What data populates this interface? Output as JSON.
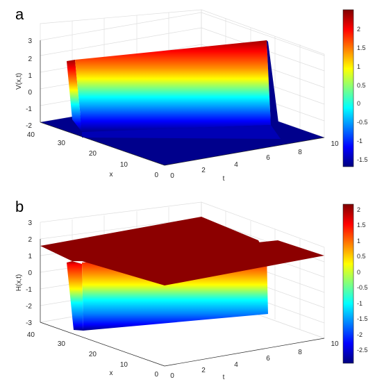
{
  "chart_data": [
    {
      "type": "surface",
      "panel_label": "a",
      "xlabel": "t",
      "ylabel": "x",
      "zlabel": "V(x,t)",
      "t_range": [
        0,
        10
      ],
      "x_range": [
        0,
        40
      ],
      "zlim": [
        -2,
        3
      ],
      "t_ticks": [
        "0",
        "2",
        "4",
        "6",
        "8",
        "10"
      ],
      "x_ticks": [
        "0",
        "10",
        "20",
        "30",
        "40"
      ],
      "z_ticks": [
        "-2",
        "-1",
        "0",
        "1",
        "2",
        "3"
      ],
      "colormap": "jet",
      "colorbar_range": [
        -1.75,
        2.45
      ],
      "colorbar_ticks": [
        "2",
        "1.5",
        "1",
        "0.5",
        "0",
        "-0.5",
        "-1",
        "-1.5"
      ],
      "surface": {
        "shape": "kink front along x, constant in t",
        "low_value": -1.75,
        "high_value": 2.45,
        "front_x": 33,
        "high_region_x": [
          33,
          40
        ]
      },
      "grid": true
    },
    {
      "type": "surface",
      "panel_label": "b",
      "xlabel": "t",
      "ylabel": "x",
      "zlabel": "H(x,t)",
      "t_range": [
        0,
        10
      ],
      "x_range": [
        0,
        40
      ],
      "zlim": [
        -3,
        3
      ],
      "t_ticks": [
        "0",
        "2",
        "4",
        "6",
        "8",
        "10"
      ],
      "x_ticks": [
        "0",
        "10",
        "20",
        "30",
        "40"
      ],
      "z_ticks": [
        "-3",
        "-2",
        "-1",
        "0",
        "1",
        "2",
        "3"
      ],
      "colormap": "jet",
      "colorbar_range": [
        -2.85,
        2.2
      ],
      "colorbar_ticks": [
        "2",
        "1.5",
        "1",
        "0.5",
        "0",
        "-0.5",
        "-1",
        "-1.5",
        "-2",
        "-2.5"
      ],
      "surface": {
        "shape": "anti-kink well along x, constant in t",
        "plateau_value": 2.1,
        "min_value": -2.85,
        "front_x": 34
      },
      "grid": true
    }
  ],
  "colors": {
    "jet": [
      "#00007f",
      "#0000ff",
      "#007fff",
      "#00ffff",
      "#7fff7f",
      "#ffff00",
      "#ff7f00",
      "#ff0000",
      "#7f0000"
    ]
  }
}
